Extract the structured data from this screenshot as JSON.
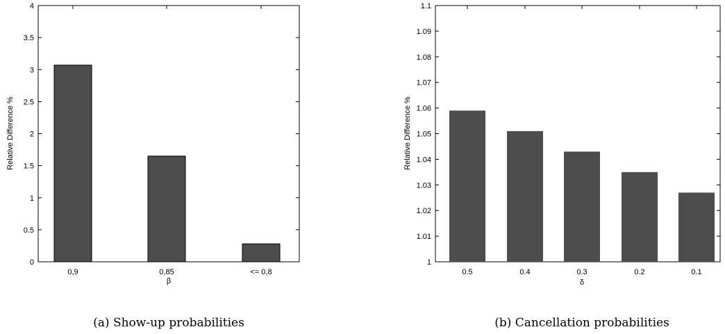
{
  "chart_data": [
    {
      "type": "bar",
      "categories": [
        "0,9",
        "0,85",
        "<= 0,8"
      ],
      "values": [
        3.07,
        1.65,
        0.28
      ],
      "xlabel": "β",
      "ylabel": "Relative Difference %",
      "ylim": [
        0,
        4
      ],
      "yticks": [
        0,
        0.5,
        1,
        1.5,
        2,
        2.5,
        3,
        3.5,
        4
      ],
      "ytick_labels": [
        "0",
        "0.5",
        "1",
        "1.5",
        "2",
        "2.5",
        "3",
        "3.5",
        "4"
      ],
      "bar_color": "#4d4d4d",
      "grid": false,
      "caption": "(a) Show-up probabilities"
    },
    {
      "type": "bar",
      "categories": [
        "0.5",
        "0.4",
        "0.3",
        "0.2",
        "0.1"
      ],
      "values": [
        1.059,
        1.051,
        1.043,
        1.035,
        1.027
      ],
      "xlabel": "δ",
      "ylabel": "Relative Difference %",
      "ylim": [
        1,
        1.1
      ],
      "yticks": [
        1,
        1.01,
        1.02,
        1.03,
        1.04,
        1.05,
        1.06,
        1.07,
        1.08,
        1.09,
        1.1
      ],
      "ytick_labels": [
        "1",
        "1.01",
        "1.02",
        "1.03",
        "1.04",
        "1.05",
        "1.06",
        "1.07",
        "1.08",
        "1.09",
        "1.1"
      ],
      "bar_color": "#4d4d4d",
      "grid": false,
      "caption": "(b) Cancellation probabilities"
    }
  ]
}
